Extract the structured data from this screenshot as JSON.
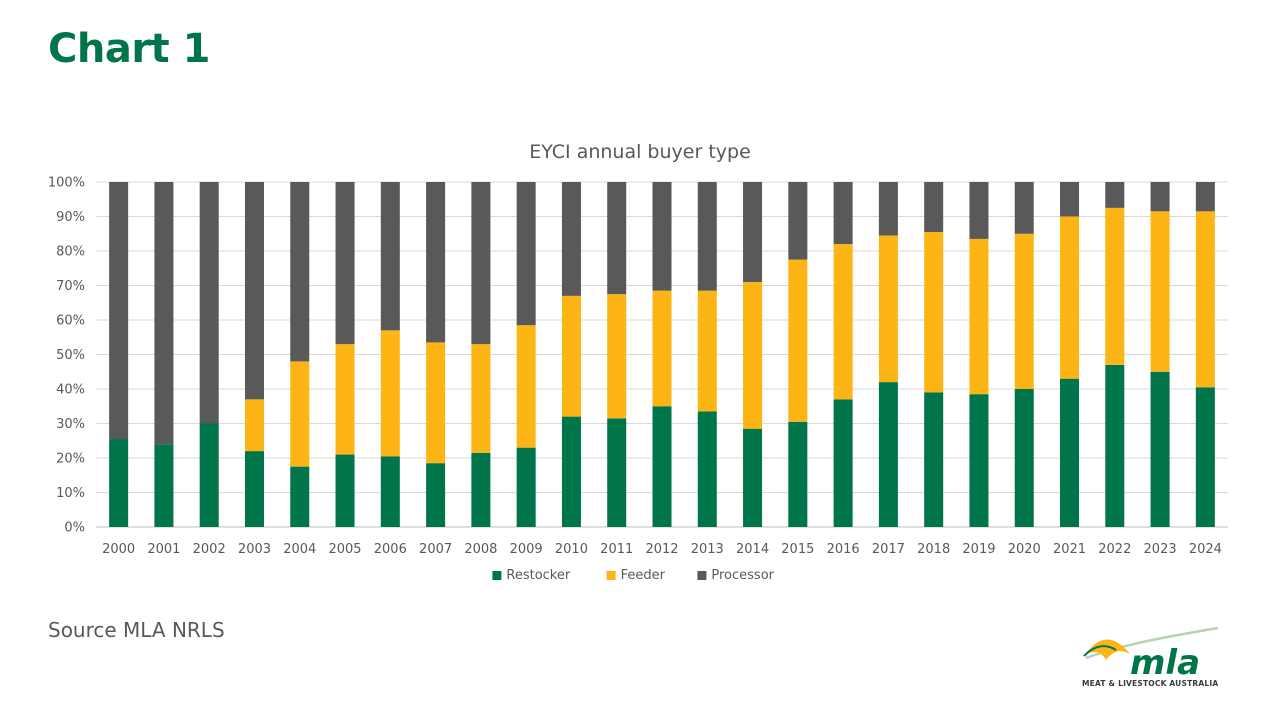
{
  "slide": {
    "title": "Chart 1",
    "source": "Source MLA NRLS"
  },
  "logo": {
    "wordmark": "mla",
    "caption": "MEAT & LIVESTOCK AUSTRALIA"
  },
  "chart_data": {
    "type": "bar",
    "stacked": true,
    "title": "EYCI annual buyer type",
    "xlabel": "",
    "ylabel": "",
    "ylim": [
      0,
      100
    ],
    "y_tick_format": "percent",
    "y_ticks": [
      0,
      10,
      20,
      30,
      40,
      50,
      60,
      70,
      80,
      90,
      100
    ],
    "grid": true,
    "legend_position": "bottom",
    "categories": [
      "2000",
      "2001",
      "2002",
      "2003",
      "2004",
      "2005",
      "2006",
      "2007",
      "2008",
      "2009",
      "2010",
      "2011",
      "2012",
      "2013",
      "2014",
      "2015",
      "2016",
      "2017",
      "2018",
      "2019",
      "2020",
      "2021",
      "2022",
      "2023",
      "2024"
    ],
    "series": [
      {
        "name": "Restocker",
        "color": "#00754A",
        "values": [
          25.5,
          24,
          30,
          22,
          17.5,
          21,
          20.5,
          18.5,
          21.5,
          23,
          32,
          31.5,
          35,
          33.5,
          28.5,
          30.5,
          37,
          42,
          39,
          38.5,
          40,
          43,
          47,
          45,
          40.5
        ]
      },
      {
        "name": "Feeder",
        "color": "#FDB515",
        "values": [
          0,
          0,
          0,
          15,
          30.5,
          32,
          36.5,
          35,
          31.5,
          35.5,
          35,
          36,
          33.5,
          35,
          42.5,
          47,
          45,
          42.5,
          46.5,
          45,
          45,
          47,
          45.5,
          46.5,
          51
        ]
      },
      {
        "name": "Processor",
        "color": "#595959",
        "values": [
          74.5,
          76,
          70,
          63,
          52,
          47,
          43,
          46.5,
          47,
          41.5,
          33,
          32.5,
          31.5,
          31.5,
          29,
          22.5,
          18,
          15.5,
          14.5,
          16.5,
          15,
          10,
          7.5,
          8.5,
          8.5
        ]
      }
    ]
  }
}
